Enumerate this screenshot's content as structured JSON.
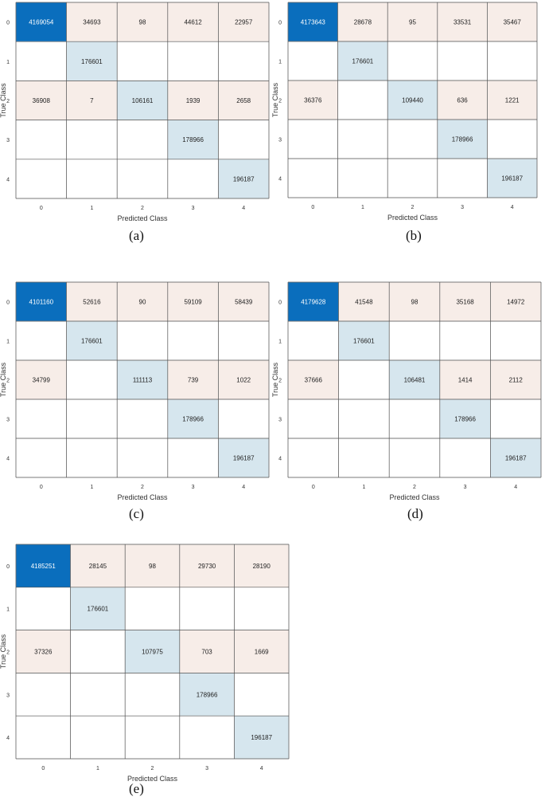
{
  "chart_data": [
    {
      "type": "heatmap",
      "caption": "(a)",
      "xlabel": "Predicted Class",
      "ylabel": "True Class",
      "x_ticks": [
        "0",
        "1",
        "2",
        "3",
        "4"
      ],
      "y_ticks": [
        "0",
        "1",
        "2",
        "3",
        "4"
      ],
      "matrix": [
        [
          4169054,
          34693,
          98,
          44612,
          22957
        ],
        [
          null,
          176601,
          null,
          null,
          null
        ],
        [
          36908,
          7,
          106161,
          1939,
          2658
        ],
        [
          null,
          null,
          null,
          178966,
          null
        ],
        [
          null,
          null,
          null,
          null,
          196187
        ]
      ]
    },
    {
      "type": "heatmap",
      "caption": "(b)",
      "xlabel": "Predicted Class",
      "ylabel": "True Class",
      "x_ticks": [
        "0",
        "1",
        "2",
        "3",
        "4"
      ],
      "y_ticks": [
        "0",
        "1",
        "2",
        "3",
        "4"
      ],
      "matrix": [
        [
          4173643,
          28678,
          95,
          33531,
          35467
        ],
        [
          null,
          176601,
          null,
          null,
          null
        ],
        [
          36376,
          null,
          109440,
          636,
          1221
        ],
        [
          null,
          null,
          null,
          178966,
          null
        ],
        [
          null,
          null,
          null,
          null,
          196187
        ]
      ]
    },
    {
      "type": "heatmap",
      "caption": "(c)",
      "xlabel": "Predicted Class",
      "ylabel": "True Class",
      "x_ticks": [
        "0",
        "1",
        "2",
        "3",
        "4"
      ],
      "y_ticks": [
        "0",
        "1",
        "2",
        "3",
        "4"
      ],
      "matrix": [
        [
          4101160,
          52616,
          90,
          59109,
          58439
        ],
        [
          null,
          176601,
          null,
          null,
          null
        ],
        [
          34799,
          null,
          111113,
          739,
          1022
        ],
        [
          null,
          null,
          null,
          178966,
          null
        ],
        [
          null,
          null,
          null,
          null,
          196187
        ]
      ]
    },
    {
      "type": "heatmap",
      "caption": "(d)",
      "xlabel": "Predicted Class",
      "ylabel": "True Class",
      "x_ticks": [
        "0",
        "1",
        "2",
        "3",
        "4"
      ],
      "y_ticks": [
        "0",
        "1",
        "2",
        "3",
        "4"
      ],
      "matrix": [
        [
          4179628,
          41548,
          98,
          35168,
          14972
        ],
        [
          null,
          176601,
          null,
          null,
          null
        ],
        [
          37666,
          null,
          106481,
          1414,
          2112
        ],
        [
          null,
          null,
          null,
          178966,
          null
        ],
        [
          null,
          null,
          null,
          null,
          196187
        ]
      ]
    },
    {
      "type": "heatmap",
      "caption": "(e)",
      "xlabel": "Predicted Class",
      "ylabel": "True Class",
      "x_ticks": [
        "0",
        "1",
        "2",
        "3",
        "4"
      ],
      "y_ticks": [
        "0",
        "1",
        "2",
        "3",
        "4"
      ],
      "matrix": [
        [
          4185251,
          28145,
          98,
          29730,
          28190
        ],
        [
          null,
          176601,
          null,
          null,
          null
        ],
        [
          37326,
          null,
          107975,
          703,
          1669
        ],
        [
          null,
          null,
          null,
          178966,
          null
        ],
        [
          null,
          null,
          null,
          null,
          196187
        ]
      ]
    }
  ],
  "colors": {
    "dominant_diagonal": "#0a6ebd",
    "diagonal": "#d6e6ee",
    "off_diagonal": "#f7ede8",
    "empty": "#ffffff",
    "grid_line": "#555555",
    "light_text": "#ffffff",
    "dark_text": "#222222"
  }
}
